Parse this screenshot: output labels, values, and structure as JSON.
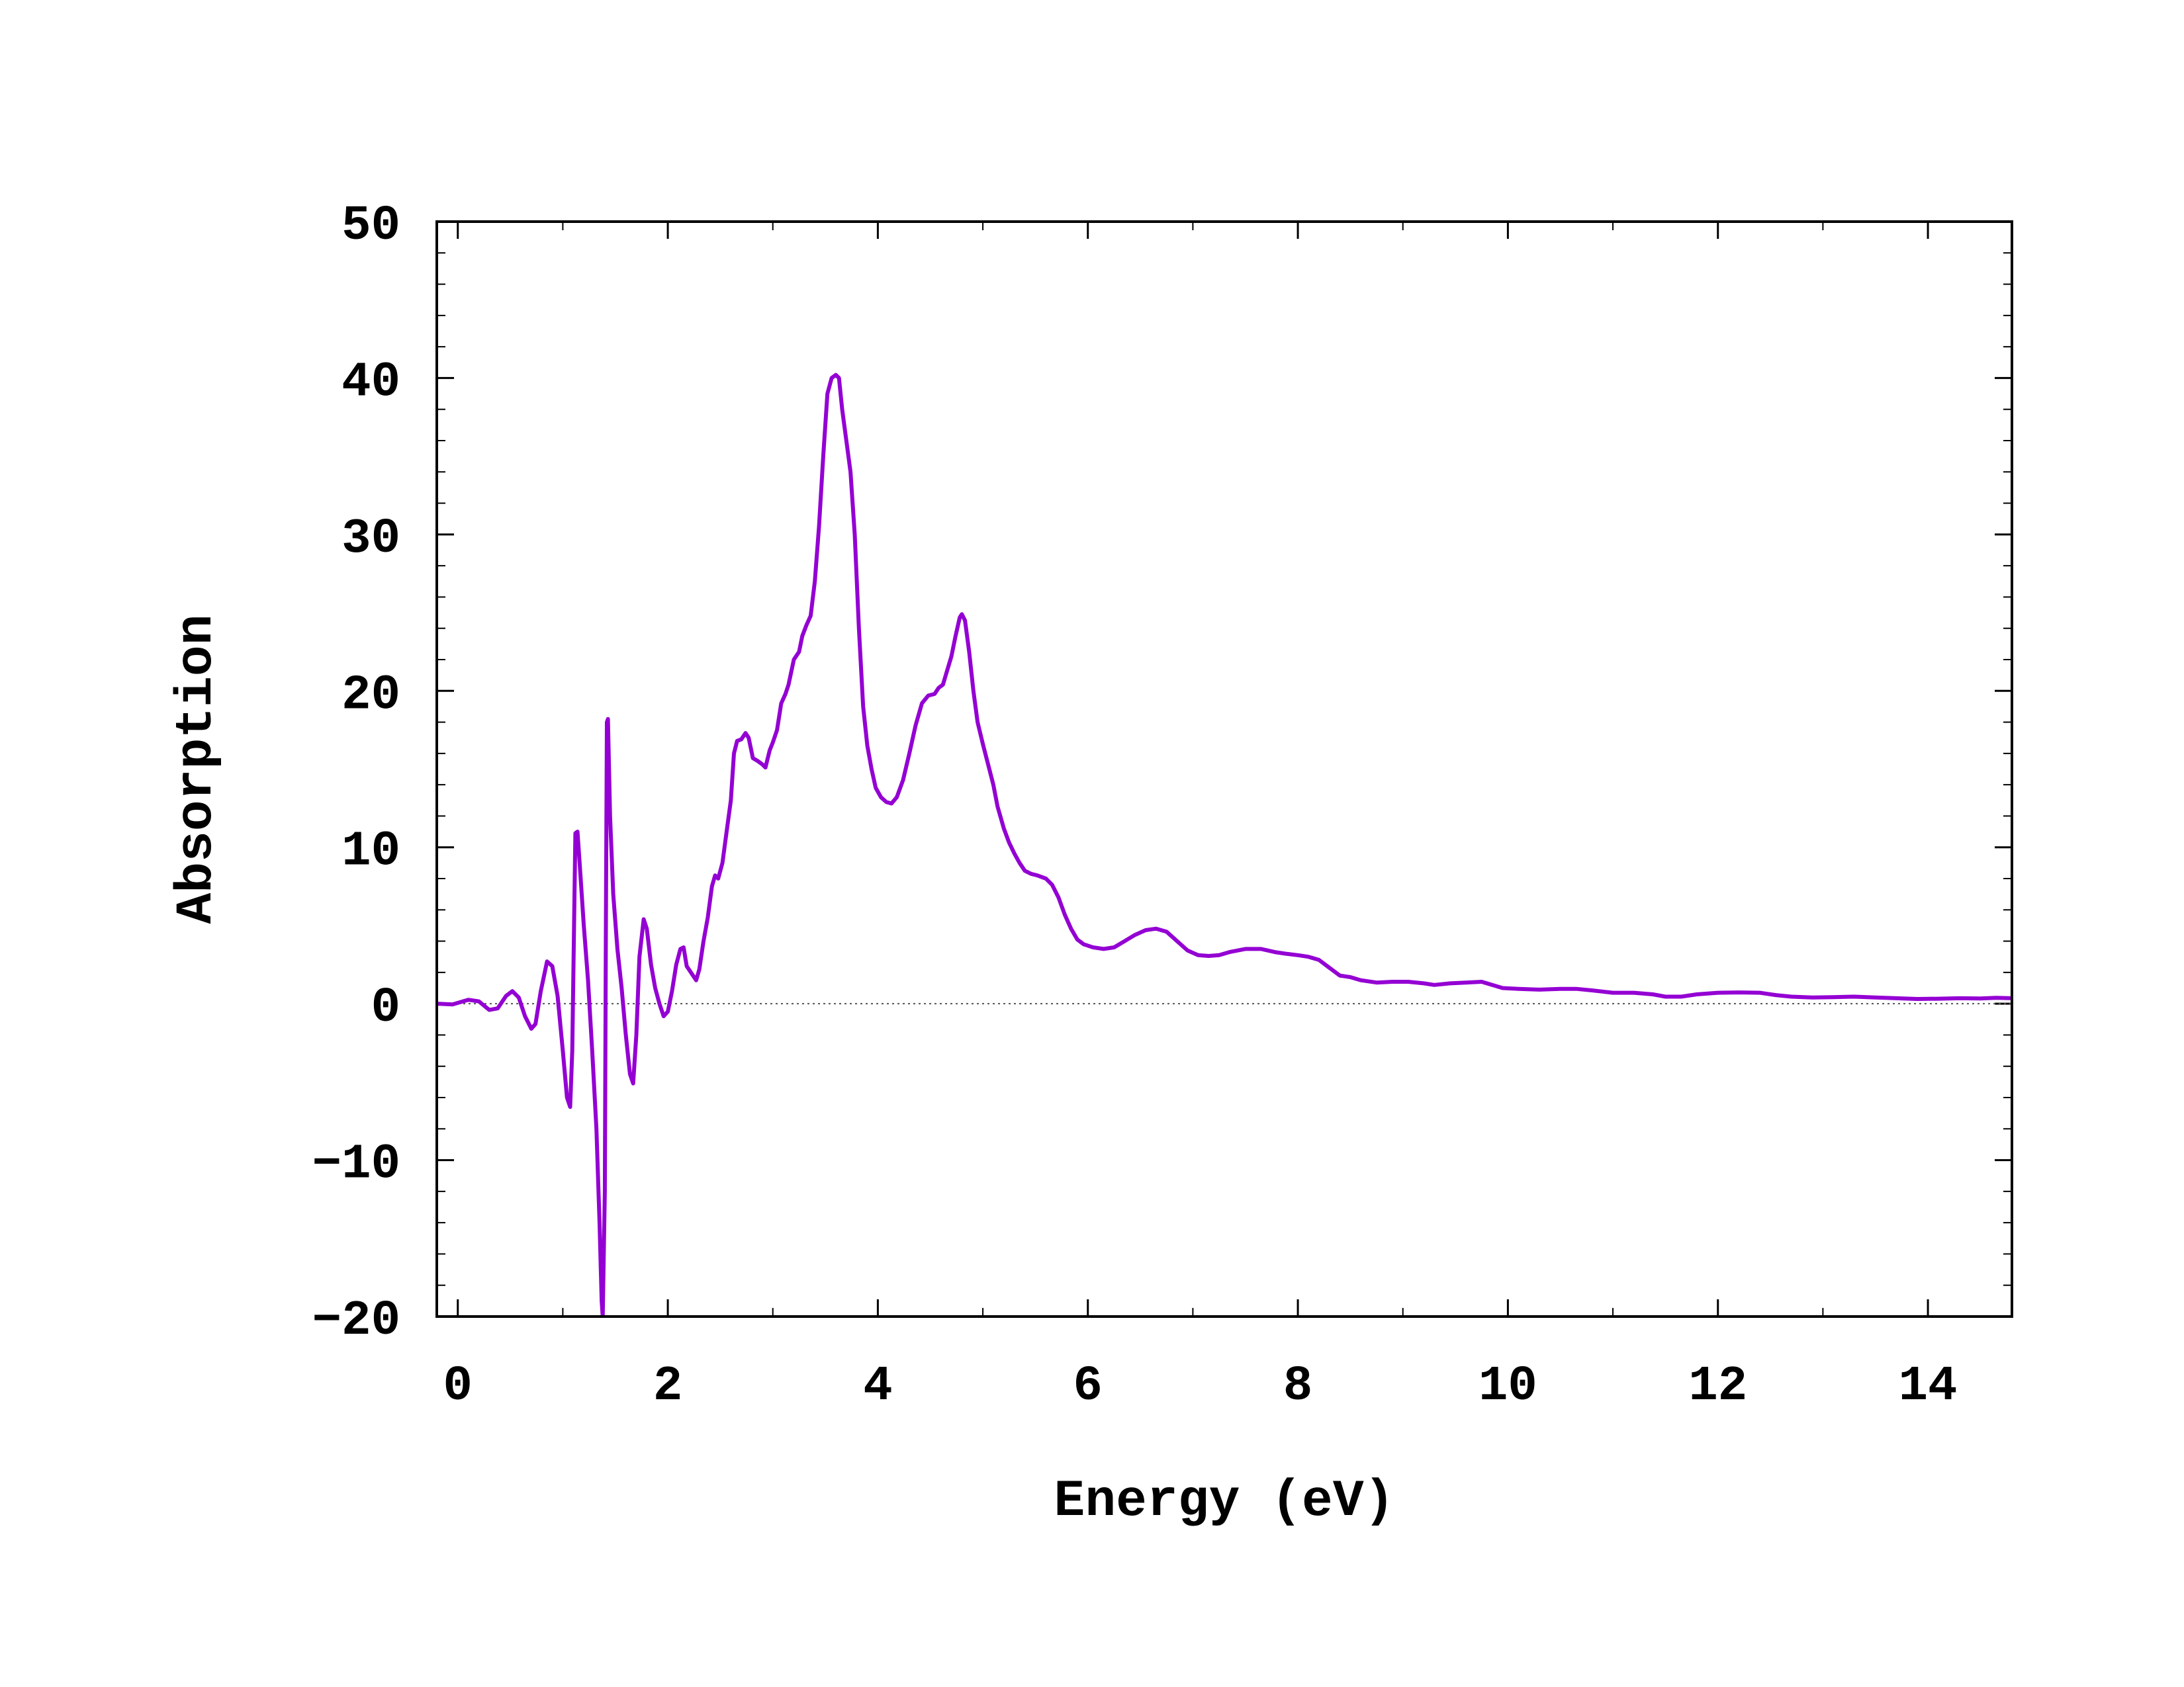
{
  "chart_data": {
    "type": "line",
    "title": "",
    "xlabel": "Energy (eV)",
    "ylabel": "Absorption",
    "xlim": [
      -0.2,
      14.8
    ],
    "ylim": [
      -20,
      50
    ],
    "x_ticks": [
      0,
      2,
      4,
      6,
      8,
      10,
      12,
      14
    ],
    "x_tick_labels": [
      "0",
      "2",
      "4",
      "6",
      "8",
      "10",
      "12",
      "14"
    ],
    "y_ticks": [
      -20,
      -10,
      0,
      10,
      20,
      30,
      40,
      50
    ],
    "y_tick_labels": [
      "−20",
      "−10",
      "0",
      "10",
      "20",
      "30",
      "40",
      "50"
    ],
    "zero_line": true,
    "grid": false,
    "legend": "none",
    "line_color": "#9400D3",
    "series": [
      {
        "points": [
          [
            -0.2,
            0.0
          ],
          [
            -0.05,
            -0.05
          ],
          [
            0.1,
            0.25
          ],
          [
            0.2,
            0.15
          ],
          [
            0.3,
            -0.4
          ],
          [
            0.38,
            -0.3
          ],
          [
            0.46,
            0.5
          ],
          [
            0.52,
            0.8
          ],
          [
            0.58,
            0.4
          ],
          [
            0.64,
            -0.8
          ],
          [
            0.7,
            -1.6
          ],
          [
            0.74,
            -1.3
          ],
          [
            0.79,
            0.8
          ],
          [
            0.85,
            2.7
          ],
          [
            0.9,
            2.4
          ],
          [
            0.95,
            0.5
          ],
          [
            1.0,
            -3.0
          ],
          [
            1.04,
            -6.0
          ],
          [
            1.07,
            -6.6
          ],
          [
            1.09,
            -3.0
          ],
          [
            1.12,
            10.9
          ],
          [
            1.14,
            11.0
          ],
          [
            1.17,
            8.0
          ],
          [
            1.2,
            5.0
          ],
          [
            1.24,
            1.5
          ],
          [
            1.28,
            -3.0
          ],
          [
            1.32,
            -8.0
          ],
          [
            1.35,
            -14.0
          ],
          [
            1.37,
            -19.0
          ],
          [
            1.38,
            -20.0
          ],
          [
            1.4,
            -12.0
          ],
          [
            1.41,
            5.0
          ],
          [
            1.42,
            18.0
          ],
          [
            1.43,
            18.2
          ],
          [
            1.45,
            12.0
          ],
          [
            1.48,
            7.0
          ],
          [
            1.52,
            3.5
          ],
          [
            1.56,
            1.0
          ],
          [
            1.6,
            -2.0
          ],
          [
            1.64,
            -4.5
          ],
          [
            1.67,
            -5.1
          ],
          [
            1.7,
            -2.0
          ],
          [
            1.73,
            3.0
          ],
          [
            1.77,
            5.4
          ],
          [
            1.8,
            4.8
          ],
          [
            1.84,
            2.5
          ],
          [
            1.88,
            1.0
          ],
          [
            1.92,
            0.0
          ],
          [
            1.96,
            -0.8
          ],
          [
            2.0,
            -0.5
          ],
          [
            2.04,
            0.8
          ],
          [
            2.08,
            2.5
          ],
          [
            2.12,
            3.5
          ],
          [
            2.15,
            3.6
          ],
          [
            2.18,
            2.4
          ],
          [
            2.22,
            2.0
          ],
          [
            2.27,
            1.5
          ],
          [
            2.3,
            2.2
          ],
          [
            2.34,
            4.0
          ],
          [
            2.38,
            5.5
          ],
          [
            2.42,
            7.5
          ],
          [
            2.45,
            8.2
          ],
          [
            2.48,
            8.0
          ],
          [
            2.52,
            9.0
          ],
          [
            2.56,
            11.0
          ],
          [
            2.6,
            13.0
          ],
          [
            2.63,
            16.0
          ],
          [
            2.66,
            16.8
          ],
          [
            2.7,
            16.9
          ],
          [
            2.74,
            17.3
          ],
          [
            2.77,
            17.0
          ],
          [
            2.81,
            15.7
          ],
          [
            2.86,
            15.5
          ],
          [
            2.9,
            15.3
          ],
          [
            2.93,
            15.1
          ],
          [
            2.97,
            16.2
          ],
          [
            3.0,
            16.7
          ],
          [
            3.04,
            17.5
          ],
          [
            3.08,
            19.2
          ],
          [
            3.12,
            19.8
          ],
          [
            3.15,
            20.4
          ],
          [
            3.2,
            22.0
          ],
          [
            3.25,
            22.5
          ],
          [
            3.28,
            23.5
          ],
          [
            3.32,
            24.2
          ],
          [
            3.36,
            24.8
          ],
          [
            3.4,
            27.0
          ],
          [
            3.44,
            30.5
          ],
          [
            3.48,
            35.0
          ],
          [
            3.52,
            39.0
          ],
          [
            3.56,
            40.0
          ],
          [
            3.6,
            40.2
          ],
          [
            3.63,
            40.0
          ],
          [
            3.66,
            38.0
          ],
          [
            3.7,
            36.0
          ],
          [
            3.74,
            34.0
          ],
          [
            3.78,
            30.0
          ],
          [
            3.82,
            24.0
          ],
          [
            3.86,
            19.0
          ],
          [
            3.9,
            16.5
          ],
          [
            3.94,
            15.0
          ],
          [
            3.98,
            13.8
          ],
          [
            4.03,
            13.2
          ],
          [
            4.08,
            12.9
          ],
          [
            4.13,
            12.8
          ],
          [
            4.18,
            13.2
          ],
          [
            4.24,
            14.3
          ],
          [
            4.3,
            16.0
          ],
          [
            4.36,
            17.8
          ],
          [
            4.42,
            19.2
          ],
          [
            4.48,
            19.7
          ],
          [
            4.54,
            19.8
          ],
          [
            4.58,
            20.2
          ],
          [
            4.62,
            20.4
          ],
          [
            4.66,
            21.3
          ],
          [
            4.7,
            22.2
          ],
          [
            4.74,
            23.5
          ],
          [
            4.78,
            24.7
          ],
          [
            4.8,
            24.9
          ],
          [
            4.83,
            24.5
          ],
          [
            4.87,
            22.5
          ],
          [
            4.91,
            20.0
          ],
          [
            4.95,
            18.0
          ],
          [
            5.0,
            16.6
          ],
          [
            5.05,
            15.3
          ],
          [
            5.1,
            14.0
          ],
          [
            5.14,
            12.6
          ],
          [
            5.2,
            11.2
          ],
          [
            5.25,
            10.3
          ],
          [
            5.3,
            9.6
          ],
          [
            5.35,
            9.0
          ],
          [
            5.4,
            8.5
          ],
          [
            5.46,
            8.3
          ],
          [
            5.52,
            8.2
          ],
          [
            5.6,
            8.0
          ],
          [
            5.66,
            7.6
          ],
          [
            5.72,
            6.8
          ],
          [
            5.78,
            5.7
          ],
          [
            5.84,
            4.8
          ],
          [
            5.9,
            4.1
          ],
          [
            5.96,
            3.8
          ],
          [
            6.05,
            3.6
          ],
          [
            6.15,
            3.5
          ],
          [
            6.25,
            3.6
          ],
          [
            6.35,
            4.0
          ],
          [
            6.45,
            4.4
          ],
          [
            6.55,
            4.7
          ],
          [
            6.65,
            4.8
          ],
          [
            6.75,
            4.6
          ],
          [
            6.85,
            4.0
          ],
          [
            6.95,
            3.4
          ],
          [
            7.05,
            3.1
          ],
          [
            7.15,
            3.05
          ],
          [
            7.25,
            3.1
          ],
          [
            7.35,
            3.3
          ],
          [
            7.5,
            3.5
          ],
          [
            7.65,
            3.5
          ],
          [
            7.78,
            3.3
          ],
          [
            7.88,
            3.2
          ],
          [
            8.0,
            3.1
          ],
          [
            8.1,
            3.0
          ],
          [
            8.2,
            2.8
          ],
          [
            8.3,
            2.3
          ],
          [
            8.4,
            1.8
          ],
          [
            8.5,
            1.7
          ],
          [
            8.6,
            1.5
          ],
          [
            8.75,
            1.35
          ],
          [
            8.9,
            1.4
          ],
          [
            9.05,
            1.4
          ],
          [
            9.2,
            1.3
          ],
          [
            9.3,
            1.2
          ],
          [
            9.45,
            1.3
          ],
          [
            9.6,
            1.35
          ],
          [
            9.75,
            1.4
          ],
          [
            9.85,
            1.2
          ],
          [
            9.95,
            1.0
          ],
          [
            10.1,
            0.95
          ],
          [
            10.3,
            0.9
          ],
          [
            10.5,
            0.95
          ],
          [
            10.65,
            0.95
          ],
          [
            10.8,
            0.85
          ],
          [
            11.0,
            0.7
          ],
          [
            11.2,
            0.7
          ],
          [
            11.38,
            0.6
          ],
          [
            11.5,
            0.45
          ],
          [
            11.65,
            0.45
          ],
          [
            11.8,
            0.6
          ],
          [
            12.0,
            0.7
          ],
          [
            12.2,
            0.72
          ],
          [
            12.4,
            0.7
          ],
          [
            12.55,
            0.55
          ],
          [
            12.7,
            0.45
          ],
          [
            12.9,
            0.4
          ],
          [
            13.1,
            0.42
          ],
          [
            13.3,
            0.45
          ],
          [
            13.5,
            0.4
          ],
          [
            13.7,
            0.35
          ],
          [
            13.9,
            0.3
          ],
          [
            14.1,
            0.32
          ],
          [
            14.3,
            0.35
          ],
          [
            14.5,
            0.33
          ],
          [
            14.65,
            0.38
          ],
          [
            14.8,
            0.35
          ]
        ]
      }
    ]
  }
}
